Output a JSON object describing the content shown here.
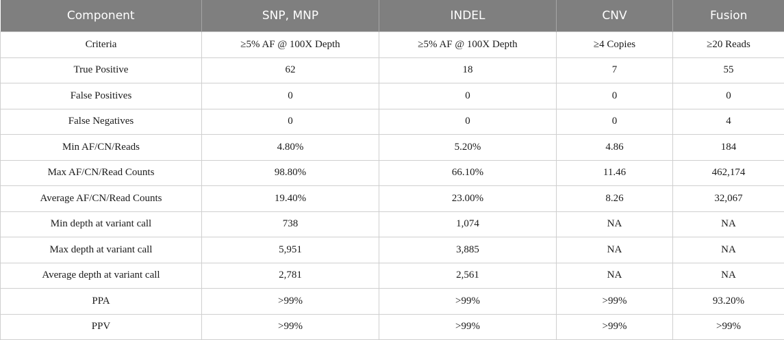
{
  "table": {
    "headers": [
      "Component",
      "SNP, MNP",
      "INDEL",
      "CNV",
      "Fusion"
    ],
    "rows": [
      [
        "Criteria",
        "≥5% AF @ 100X Depth",
        "≥5% AF @ 100X Depth",
        "≥4 Copies",
        "≥20 Reads"
      ],
      [
        "True Positive",
        "62",
        "18",
        "7",
        "55"
      ],
      [
        "False Positives",
        "0",
        "0",
        "0",
        "0"
      ],
      [
        "False Negatives",
        "0",
        "0",
        "0",
        "4"
      ],
      [
        "Min AF/CN/Reads",
        "4.80%",
        "5.20%",
        "4.86",
        "184"
      ],
      [
        "Max AF/CN/Read Counts",
        "98.80%",
        "66.10%",
        "11.46",
        "462,174"
      ],
      [
        "Average AF/CN/Read Counts",
        "19.40%",
        "23.00%",
        "8.26",
        "32,067"
      ],
      [
        "Min depth at variant call",
        "738",
        "1,074",
        "NA",
        "NA"
      ],
      [
        "Max depth at variant call",
        "5,951",
        "3,885",
        "NA",
        "NA"
      ],
      [
        "Average depth at variant call",
        "2,781",
        "2,561",
        "NA",
        "NA"
      ],
      [
        "PPA",
        ">99%",
        ">99%",
        ">99%",
        "93.20%"
      ],
      [
        "PPV",
        ">99%",
        ">99%",
        ">99%",
        ">99%"
      ]
    ]
  }
}
